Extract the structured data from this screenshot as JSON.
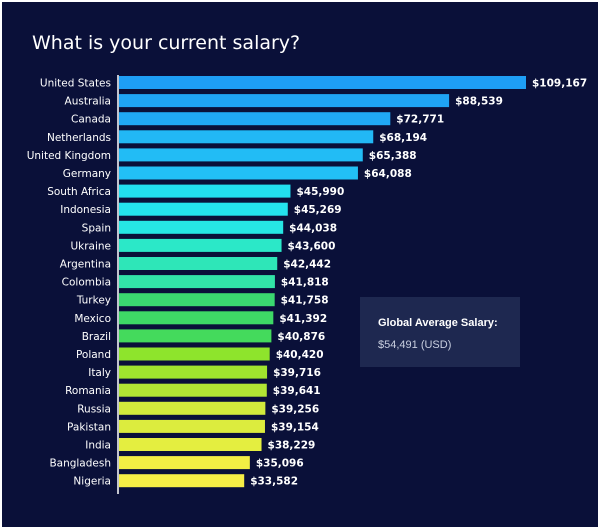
{
  "chart_data": {
    "type": "bar",
    "orientation": "horizontal",
    "title": "What is your current salary?",
    "xlabel": "",
    "ylabel": "",
    "xlim": [
      0,
      109167
    ],
    "grid": false,
    "categories": [
      "United States",
      "Australia",
      "Canada",
      "Netherlands",
      "United Kingdom",
      "Germany",
      "South Africa",
      "Indonesia",
      "Spain",
      "Ukraine",
      "Argentina",
      "Colombia",
      "Turkey",
      "Mexico",
      "Brazil",
      "Poland",
      "Italy",
      "Romania",
      "Russia",
      "Pakistan",
      "India",
      "Bangladesh",
      "Nigeria"
    ],
    "values": [
      109167,
      88539,
      72771,
      68194,
      65388,
      64088,
      45990,
      45269,
      44038,
      43600,
      42442,
      41818,
      41758,
      41392,
      40876,
      40420,
      39716,
      39641,
      39256,
      39154,
      38229,
      35096,
      33582
    ],
    "labels": [
      "$109,167",
      "$88,539",
      "$72,771",
      "$68,194",
      "$65,388",
      "$64,088",
      "$45,990",
      "$45,269",
      "$44,038",
      "$43,600",
      "$42,442",
      "$41,818",
      "$41,758",
      "$41,392",
      "$40,876",
      "$40,420",
      "$39,716",
      "$39,641",
      "$39,256",
      "$39,154",
      "$38,229",
      "$35,096",
      "$33,582"
    ],
    "colors": [
      "#1e9ef5",
      "#1fa4f5",
      "#20a8f5",
      "#22b8f5",
      "#22bcf5",
      "#22c0f5",
      "#22dff0",
      "#24e2ee",
      "#26e6e4",
      "#2be8c8",
      "#2ee6b8",
      "#32e4a8",
      "#3ad870",
      "#3ed866",
      "#44da5c",
      "#8ee42c",
      "#a0e42e",
      "#b2e634",
      "#d2ea3c",
      "#dcec3e",
      "#e4ee40",
      "#f2ee44",
      "#f6ee46"
    ],
    "annotation": {
      "title": "Global Average Salary:",
      "value": "$54,491 (USD)"
    }
  }
}
